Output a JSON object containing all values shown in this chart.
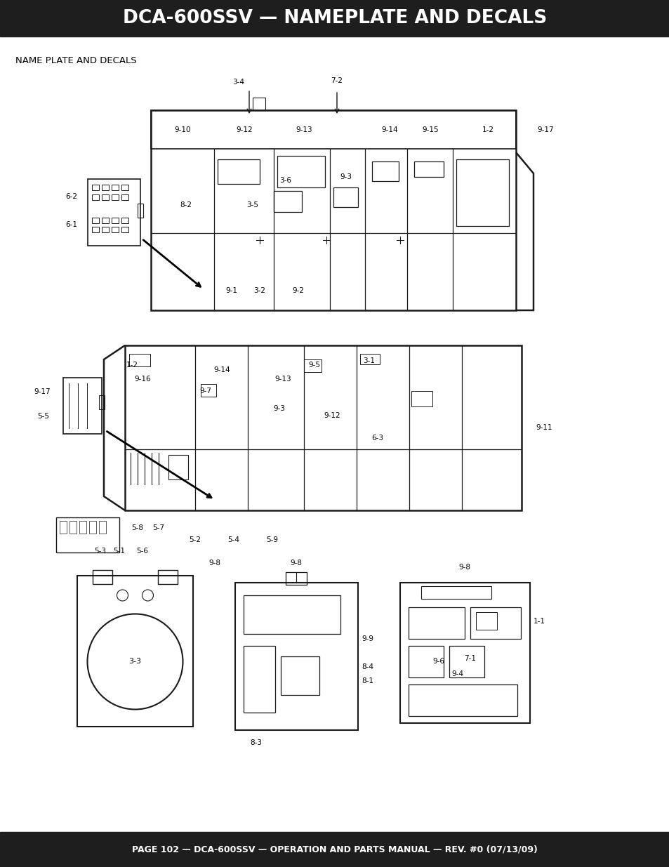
{
  "title": "DCA-600SSV — NAMEPLATE AND DECALS",
  "subtitle": "NAME PLATE AND DECALS",
  "footer": "PAGE 102 — DCA-600SSV — OPERATION AND PARTS MANUAL — REV. #0 (07/13/09)",
  "header_bg": "#1e1e1e",
  "footer_bg": "#1e1e1e",
  "header_text_color": "#ffffff",
  "footer_text_color": "#ffffff",
  "bg_color": "#ffffff",
  "fig_w": 9.54,
  "fig_h": 12.35,
  "dpi": 100
}
